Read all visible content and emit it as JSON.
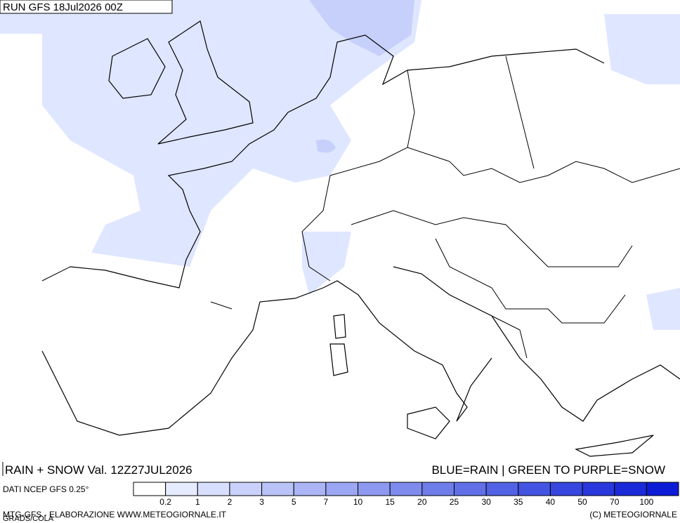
{
  "header": {
    "run": "RUN GFS 18Jul2026 00Z"
  },
  "footer": {
    "field": "RAIN + SNOW Val. 12Z27JUL2026",
    "key": "BLUE=RAIN | GREEN TO PURPLE=SNOW",
    "source": "DATI NCEP GFS 0.25°",
    "credits": "MTG-GFS - ELABORAZIONE WWW.METEOGIORNALE.IT",
    "copyright": "(C) METEOGIORNALE",
    "software": "GRADS/COLA"
  },
  "legend": {
    "levels": [
      "0.2",
      "1",
      "2",
      "3",
      "5",
      "7",
      "10",
      "15",
      "20",
      "25",
      "30",
      "35",
      "40",
      "50",
      "70",
      "100"
    ],
    "colors": [
      "#ffffff",
      "#e6ebff",
      "#d8defd",
      "#c9d1fb",
      "#bac3f8",
      "#abb5f6",
      "#9ca7f3",
      "#8d99f0",
      "#7e8bed",
      "#6f7dea",
      "#6170e7",
      "#5262e4",
      "#4454e2",
      "#3646df",
      "#2838dc",
      "#1a2ad9",
      "#0c1cd6"
    ]
  }
}
